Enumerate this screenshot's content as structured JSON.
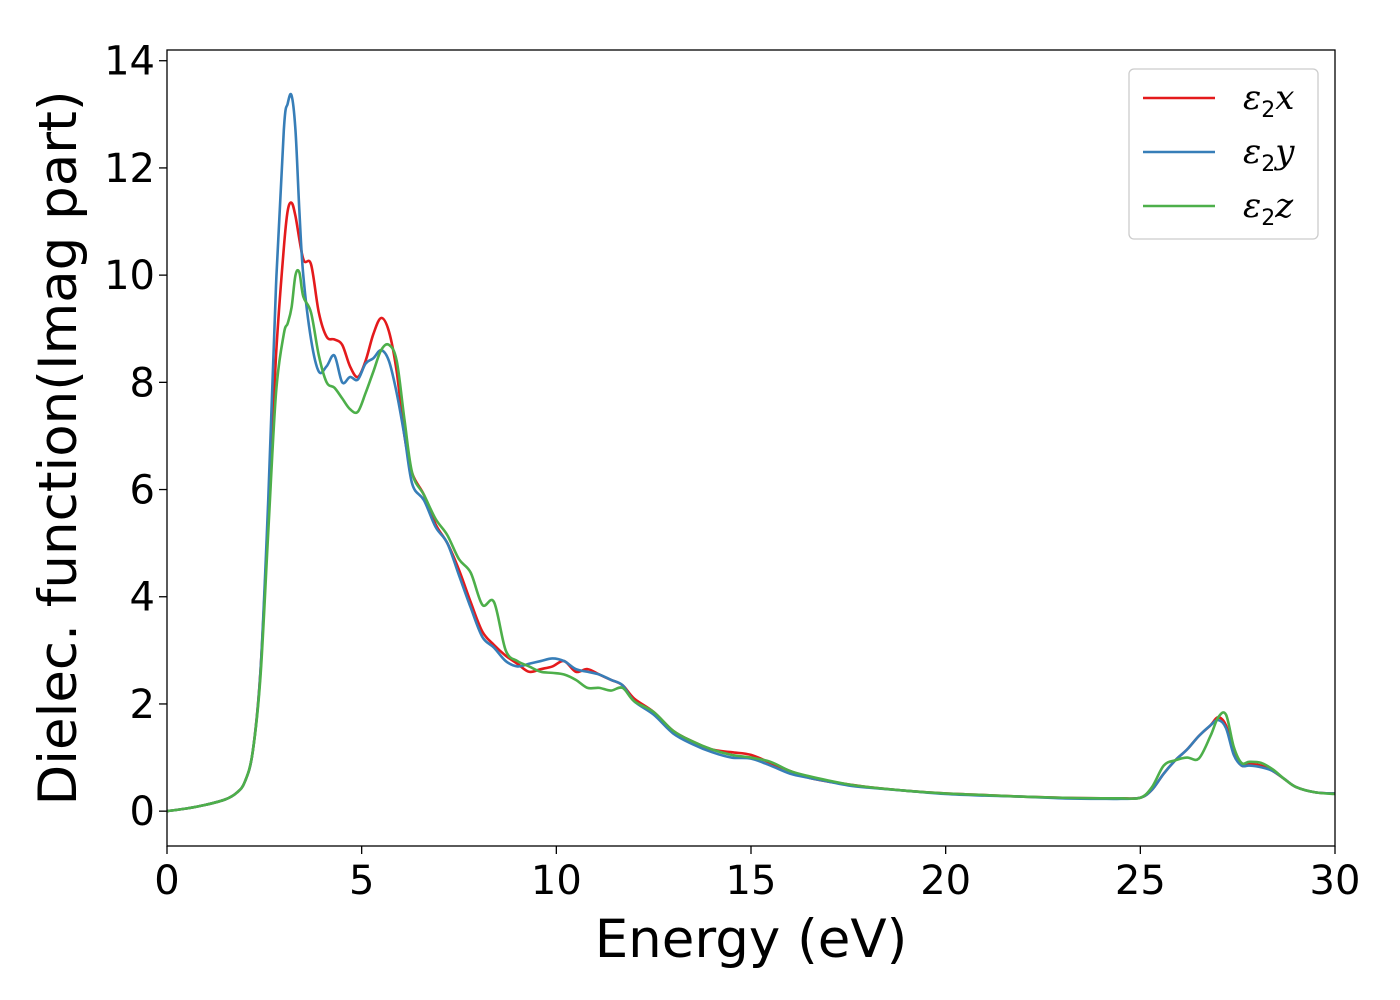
{
  "chart_data": {
    "type": "line",
    "title": "",
    "xlabel": "Energy (eV)",
    "ylabel": "Dielec. function(Imag part)",
    "xlim": [
      0,
      30
    ],
    "ylim": [
      -0.65,
      14.2
    ],
    "xticks": [
      0,
      5,
      10,
      15,
      20,
      25,
      30
    ],
    "yticks": [
      0,
      2,
      4,
      6,
      8,
      10,
      12,
      14
    ],
    "grid": false,
    "legend_position": "top-right",
    "series": [
      {
        "name": "ε2x",
        "legend_main": "ε",
        "legend_sub": "2",
        "legend_tail": "x",
        "color": "#e41a1c",
        "x": [
          0,
          0.5,
          1,
          1.5,
          1.8,
          2.0,
          2.2,
          2.4,
          2.6,
          2.8,
          3.0,
          3.1,
          3.2,
          3.3,
          3.5,
          3.7,
          3.9,
          4.1,
          4.3,
          4.5,
          4.7,
          4.9,
          5.1,
          5.3,
          5.5,
          5.7,
          5.9,
          6.1,
          6.3,
          6.6,
          6.9,
          7.2,
          7.5,
          7.8,
          8.1,
          8.4,
          8.7,
          9.0,
          9.3,
          9.6,
          9.9,
          10.2,
          10.5,
          10.8,
          11.1,
          11.4,
          11.7,
          12.0,
          12.5,
          13.0,
          13.5,
          14.0,
          14.5,
          15.0,
          15.5,
          16.0,
          16.5,
          17.0,
          17.5,
          18.0,
          19.0,
          20.0,
          21.0,
          22.0,
          23.0,
          24.0,
          24.5,
          25.0,
          25.3,
          25.6,
          25.9,
          26.2,
          26.5,
          26.8,
          27.0,
          27.2,
          27.4,
          27.6,
          27.8,
          28.1,
          28.4,
          28.7,
          29.0,
          29.5,
          30.0
        ],
        "y": [
          0.0,
          0.05,
          0.12,
          0.22,
          0.35,
          0.55,
          1.1,
          2.6,
          5.5,
          8.5,
          10.5,
          11.2,
          11.35,
          11.1,
          10.3,
          10.2,
          9.3,
          8.85,
          8.8,
          8.7,
          8.3,
          8.1,
          8.4,
          8.9,
          9.2,
          8.95,
          8.2,
          7.0,
          6.3,
          5.9,
          5.35,
          5.0,
          4.5,
          3.9,
          3.35,
          3.1,
          2.9,
          2.75,
          2.6,
          2.65,
          2.7,
          2.8,
          2.6,
          2.65,
          2.55,
          2.45,
          2.35,
          2.1,
          1.85,
          1.5,
          1.3,
          1.15,
          1.1,
          1.05,
          0.9,
          0.75,
          0.62,
          0.55,
          0.5,
          0.45,
          0.38,
          0.33,
          0.3,
          0.27,
          0.25,
          0.24,
          0.24,
          0.25,
          0.4,
          0.7,
          0.95,
          1.15,
          1.4,
          1.6,
          1.75,
          1.6,
          1.1,
          0.85,
          0.88,
          0.85,
          0.75,
          0.6,
          0.45,
          0.35,
          0.33
        ]
      },
      {
        "name": "ε2y",
        "legend_main": "ε",
        "legend_sub": "2",
        "legend_tail": "y",
        "color": "#377eb8",
        "x": [
          0,
          0.5,
          1,
          1.5,
          1.8,
          2.0,
          2.2,
          2.4,
          2.6,
          2.8,
          3.0,
          3.1,
          3.2,
          3.3,
          3.4,
          3.5,
          3.7,
          3.9,
          4.1,
          4.3,
          4.5,
          4.7,
          4.9,
          5.1,
          5.3,
          5.5,
          5.7,
          5.9,
          6.1,
          6.3,
          6.6,
          6.9,
          7.2,
          7.5,
          7.8,
          8.1,
          8.4,
          8.7,
          9.0,
          9.3,
          9.6,
          9.9,
          10.2,
          10.5,
          10.8,
          11.1,
          11.4,
          11.7,
          12.0,
          12.5,
          13.0,
          13.5,
          14.0,
          14.5,
          15.0,
          15.5,
          16.0,
          16.5,
          17.0,
          17.5,
          18.0,
          19.0,
          20.0,
          21.0,
          22.0,
          23.0,
          24.0,
          24.5,
          25.0,
          25.3,
          25.6,
          25.9,
          26.2,
          26.5,
          26.8,
          27.0,
          27.2,
          27.4,
          27.6,
          27.8,
          28.1,
          28.4,
          28.7,
          29.0,
          29.5,
          30.0
        ],
        "y": [
          0.0,
          0.05,
          0.12,
          0.22,
          0.35,
          0.55,
          1.1,
          2.6,
          5.8,
          9.8,
          12.7,
          13.2,
          13.35,
          12.7,
          11.2,
          10.0,
          8.8,
          8.2,
          8.3,
          8.5,
          8.0,
          8.1,
          8.05,
          8.35,
          8.45,
          8.6,
          8.4,
          7.8,
          7.0,
          6.1,
          5.8,
          5.3,
          5.0,
          4.4,
          3.8,
          3.25,
          3.05,
          2.8,
          2.7,
          2.75,
          2.8,
          2.85,
          2.8,
          2.65,
          2.6,
          2.55,
          2.45,
          2.35,
          2.05,
          1.8,
          1.45,
          1.25,
          1.1,
          1.0,
          0.98,
          0.85,
          0.7,
          0.62,
          0.55,
          0.48,
          0.44,
          0.38,
          0.32,
          0.29,
          0.27,
          0.24,
          0.23,
          0.23,
          0.25,
          0.4,
          0.7,
          0.95,
          1.15,
          1.4,
          1.6,
          1.7,
          1.55,
          1.05,
          0.85,
          0.85,
          0.82,
          0.75,
          0.6,
          0.45,
          0.35,
          0.33
        ]
      },
      {
        "name": "ε2z",
        "legend_main": "ε",
        "legend_sub": "2",
        "legend_tail": "z",
        "color": "#4daf4a",
        "x": [
          0,
          0.5,
          1,
          1.5,
          1.8,
          2.0,
          2.2,
          2.4,
          2.6,
          2.8,
          3.0,
          3.1,
          3.2,
          3.3,
          3.4,
          3.5,
          3.7,
          3.9,
          4.1,
          4.3,
          4.5,
          4.7,
          4.9,
          5.1,
          5.3,
          5.5,
          5.7,
          5.9,
          6.1,
          6.3,
          6.6,
          6.9,
          7.2,
          7.5,
          7.8,
          8.1,
          8.4,
          8.7,
          9.0,
          9.3,
          9.6,
          9.9,
          10.2,
          10.5,
          10.8,
          11.1,
          11.4,
          11.7,
          12.0,
          12.5,
          13.0,
          13.5,
          14.0,
          14.5,
          15.0,
          15.5,
          16.0,
          16.5,
          17.0,
          17.5,
          18.0,
          19.0,
          20.0,
          21.0,
          22.0,
          23.0,
          24.0,
          24.5,
          25.0,
          25.3,
          25.6,
          25.9,
          26.2,
          26.5,
          26.8,
          27.0,
          27.2,
          27.4,
          27.6,
          27.8,
          28.1,
          28.4,
          28.7,
          29.0,
          29.5,
          30.0
        ],
        "y": [
          0.0,
          0.05,
          0.12,
          0.22,
          0.35,
          0.55,
          1.1,
          2.5,
          5.2,
          7.8,
          8.9,
          9.1,
          9.4,
          10.0,
          10.05,
          9.6,
          9.3,
          8.5,
          8.0,
          7.9,
          7.7,
          7.5,
          7.45,
          7.8,
          8.2,
          8.6,
          8.7,
          8.4,
          7.3,
          6.3,
          5.9,
          5.45,
          5.15,
          4.7,
          4.45,
          3.85,
          3.9,
          3.0,
          2.8,
          2.7,
          2.6,
          2.58,
          2.55,
          2.45,
          2.3,
          2.3,
          2.25,
          2.3,
          2.05,
          1.85,
          1.5,
          1.3,
          1.15,
          1.05,
          1.0,
          0.92,
          0.75,
          0.65,
          0.57,
          0.5,
          0.45,
          0.38,
          0.33,
          0.3,
          0.27,
          0.25,
          0.24,
          0.24,
          0.25,
          0.45,
          0.85,
          0.95,
          1.0,
          0.98,
          1.4,
          1.75,
          1.8,
          1.2,
          0.9,
          0.92,
          0.9,
          0.78,
          0.6,
          0.45,
          0.35,
          0.32
        ]
      }
    ]
  }
}
